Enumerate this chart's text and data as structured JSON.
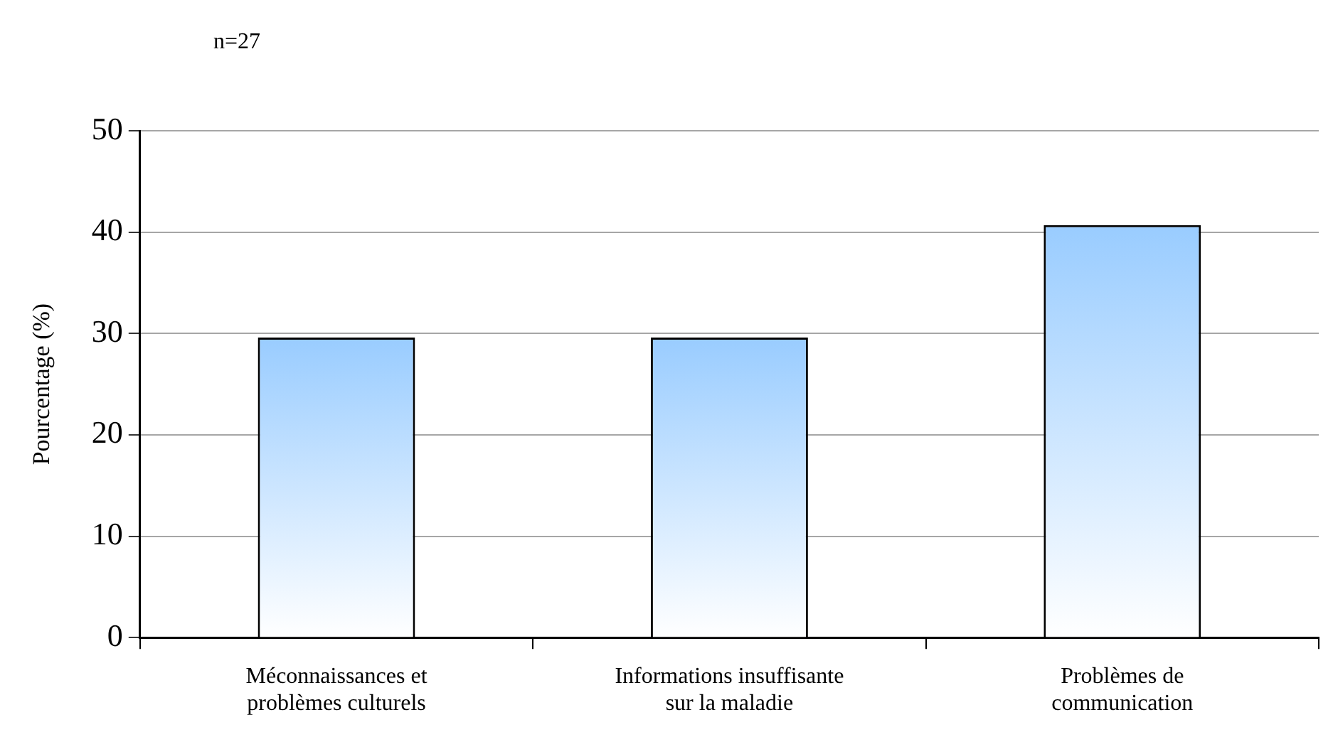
{
  "chart_data": {
    "type": "bar",
    "ylabel": "Pourcentage (%)",
    "annotations": [
      "n=27"
    ],
    "categories": [
      "Méconnaissances et problèmes culturels",
      "Informations insuffisante sur la maladie",
      "Problèmes de communication"
    ],
    "values": [
      29.6,
      29.6,
      40.7
    ],
    "color": "#99ccff",
    "ylim": [
      0,
      50
    ],
    "yticks": [
      0,
      10,
      20,
      30,
      40,
      50
    ],
    "grid": "y",
    "legend": false
  }
}
